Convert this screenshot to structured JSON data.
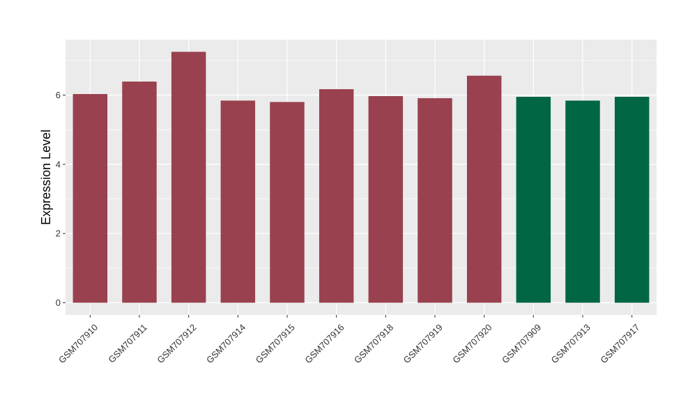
{
  "chart_data": {
    "type": "bar",
    "title": "",
    "xlabel": "",
    "ylabel": "Expression Level",
    "categories": [
      "GSM707910",
      "GSM707911",
      "GSM707912",
      "GSM707914",
      "GSM707915",
      "GSM707916",
      "GSM707918",
      "GSM707919",
      "GSM707920",
      "GSM707909",
      "GSM707913",
      "GSM707917"
    ],
    "values": [
      6.03,
      6.39,
      7.25,
      5.84,
      5.8,
      6.17,
      5.97,
      5.91,
      6.56,
      5.95,
      5.84,
      5.95
    ],
    "bar_colors": [
      "#99414f",
      "#99414f",
      "#99414f",
      "#99414f",
      "#99414f",
      "#99414f",
      "#99414f",
      "#99414f",
      "#99414f",
      "#006643",
      "#006643",
      "#006643"
    ],
    "ylim": [
      -0.35,
      7.6
    ],
    "yticks": [
      0,
      2,
      4,
      6
    ],
    "grid": true,
    "panel_background": "#ebebeb",
    "grid_color": "#ffffff",
    "legend": "none"
  }
}
